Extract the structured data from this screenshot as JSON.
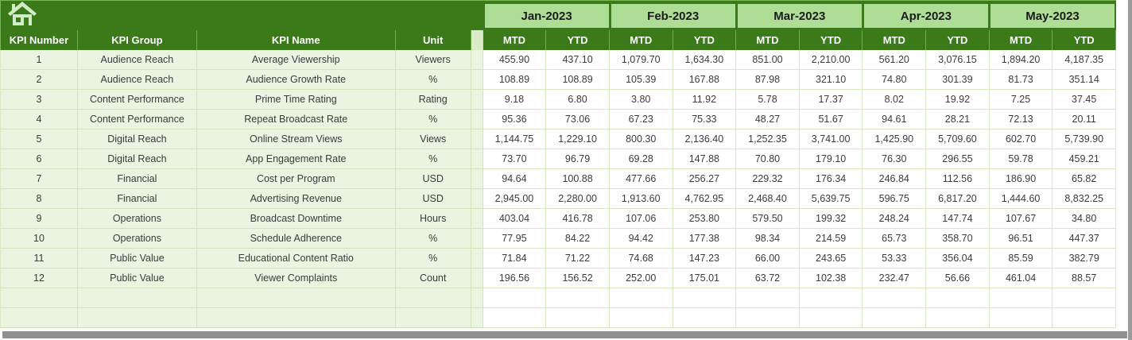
{
  "table": {
    "left_headers": [
      "KPI Number",
      "KPI Group",
      "KPI Name",
      "Unit"
    ],
    "months": [
      "Jan-2023",
      "Feb-2023",
      "Mar-2023",
      "Apr-2023",
      "May-2023"
    ],
    "period_headers": [
      "MTD",
      "YTD"
    ],
    "rows": [
      {
        "number": "1",
        "group": "Audience Reach",
        "name": "Average Viewership",
        "unit": "Viewers",
        "values": [
          "455.90",
          "437.10",
          "1,079.70",
          "1,634.30",
          "851.00",
          "2,210.00",
          "561.20",
          "3,076.15",
          "1,894.20",
          "4,187.35"
        ]
      },
      {
        "number": "2",
        "group": "Audience Reach",
        "name": "Audience Growth Rate",
        "unit": "%",
        "values": [
          "108.89",
          "108.89",
          "105.39",
          "167.88",
          "87.98",
          "321.10",
          "74.80",
          "301.39",
          "81.73",
          "351.14"
        ]
      },
      {
        "number": "3",
        "group": "Content Performance",
        "name": "Prime Time Rating",
        "unit": "Rating",
        "values": [
          "9.18",
          "6.80",
          "3.80",
          "11.92",
          "5.78",
          "17.37",
          "8.02",
          "19.92",
          "7.25",
          "37.45"
        ]
      },
      {
        "number": "4",
        "group": "Content Performance",
        "name": "Repeat Broadcast Rate",
        "unit": "%",
        "values": [
          "95.36",
          "73.06",
          "67.23",
          "75.33",
          "48.27",
          "51.67",
          "94.61",
          "28.21",
          "72.13",
          "20.11"
        ]
      },
      {
        "number": "5",
        "group": "Digital Reach",
        "name": "Online Stream Views",
        "unit": "Views",
        "values": [
          "1,144.75",
          "1,229.10",
          "800.30",
          "2,136.40",
          "1,252.35",
          "3,741.00",
          "1,425.90",
          "5,709.60",
          "602.70",
          "5,739.90"
        ]
      },
      {
        "number": "6",
        "group": "Digital Reach",
        "name": "App Engagement Rate",
        "unit": "%",
        "values": [
          "73.70",
          "96.79",
          "69.28",
          "147.88",
          "70.80",
          "179.10",
          "76.30",
          "296.55",
          "59.78",
          "459.21"
        ]
      },
      {
        "number": "7",
        "group": "Financial",
        "name": "Cost per Program",
        "unit": "USD",
        "values": [
          "94.64",
          "100.88",
          "477.66",
          "256.27",
          "229.32",
          "176.34",
          "246.84",
          "112.56",
          "186.90",
          "65.82"
        ]
      },
      {
        "number": "8",
        "group": "Financial",
        "name": "Advertising Revenue",
        "unit": "USD",
        "values": [
          "2,945.00",
          "2,280.00",
          "1,913.60",
          "4,762.95",
          "2,468.40",
          "5,639.75",
          "596.75",
          "6,817.20",
          "1,444.60",
          "8,832.25"
        ]
      },
      {
        "number": "9",
        "group": "Operations",
        "name": "Broadcast Downtime",
        "unit": "Hours",
        "values": [
          "403.04",
          "416.78",
          "107.06",
          "253.80",
          "579.50",
          "199.32",
          "248.24",
          "147.74",
          "107.67",
          "34.80"
        ]
      },
      {
        "number": "10",
        "group": "Operations",
        "name": "Schedule Adherence",
        "unit": "%",
        "values": [
          "77.95",
          "84.22",
          "94.42",
          "177.38",
          "98.34",
          "214.59",
          "65.73",
          "358.70",
          "96.51",
          "447.37"
        ]
      },
      {
        "number": "11",
        "group": "Public Value",
        "name": "Educational Content Ratio",
        "unit": "%",
        "values": [
          "71.84",
          "71.22",
          "74.68",
          "147.23",
          "66.00",
          "243.65",
          "53.33",
          "356.04",
          "85.59",
          "382.79"
        ]
      },
      {
        "number": "12",
        "group": "Public Value",
        "name": "Viewer Complaints",
        "unit": "Count",
        "values": [
          "196.56",
          "156.52",
          "252.00",
          "175.01",
          "63.72",
          "102.38",
          "232.47",
          "56.66",
          "461.04",
          "88.57"
        ]
      }
    ],
    "empty_row_count": 2
  },
  "icons": {
    "home": "house-glyph"
  },
  "colors": {
    "header_green": "#3A7A18",
    "month_band_green": "#AEDE96",
    "row_tint_green": "#EAF4E1",
    "grid_line": "#D8E9C4",
    "header_divider": "#6FAE49",
    "header_text": "#FFFFFF",
    "body_text": "#3B3B3B",
    "scrollbar_gray": "#8F8F8F"
  }
}
